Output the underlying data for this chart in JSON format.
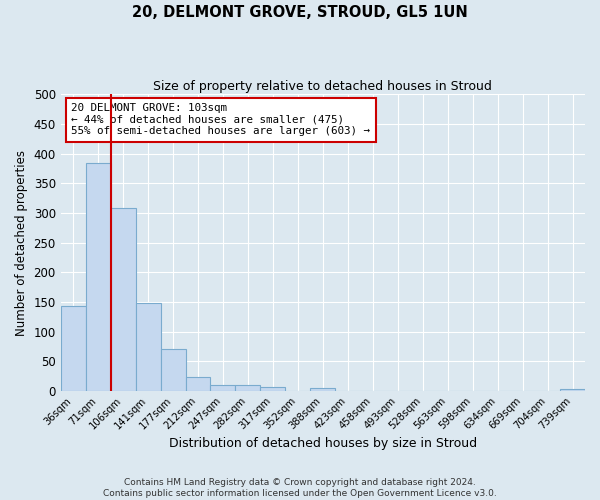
{
  "title": "20, DELMONT GROVE, STROUD, GL5 1UN",
  "subtitle": "Size of property relative to detached houses in Stroud",
  "xlabel": "Distribution of detached houses by size in Stroud",
  "ylabel": "Number of detached properties",
  "bin_labels": [
    "36sqm",
    "71sqm",
    "106sqm",
    "141sqm",
    "177sqm",
    "212sqm",
    "247sqm",
    "282sqm",
    "317sqm",
    "352sqm",
    "388sqm",
    "423sqm",
    "458sqm",
    "493sqm",
    "528sqm",
    "563sqm",
    "598sqm",
    "634sqm",
    "669sqm",
    "704sqm",
    "739sqm"
  ],
  "bar_values": [
    143,
    384,
    308,
    149,
    70,
    24,
    10,
    10,
    7,
    0,
    5,
    0,
    0,
    0,
    0,
    0,
    0,
    0,
    0,
    0,
    3
  ],
  "bar_color": "#c5d8ef",
  "bar_edge_color": "#7aabce",
  "vline_color": "#cc0000",
  "annotation_line1": "20 DELMONT GROVE: 103sqm",
  "annotation_line2": "← 44% of detached houses are smaller (475)",
  "annotation_line3": "55% of semi-detached houses are larger (603) →",
  "annotation_box_color": "#ffffff",
  "annotation_box_edge": "#cc0000",
  "ylim": [
    0,
    500
  ],
  "yticks": [
    0,
    50,
    100,
    150,
    200,
    250,
    300,
    350,
    400,
    450,
    500
  ],
  "bg_color": "#dce8f0",
  "grid_color": "#ffffff",
  "footer": "Contains HM Land Registry data © Crown copyright and database right 2024.\nContains public sector information licensed under the Open Government Licence v3.0."
}
